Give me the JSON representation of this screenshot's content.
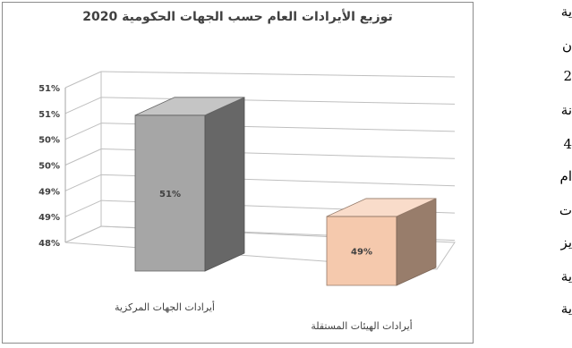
{
  "chart_data": {
    "type": "bar",
    "title": "توزيع الأيرادات العام حسب الجهات الحكومية 2020",
    "categories": [
      "أيرادات الجهات المركزية",
      "أيرادات الهيئات المستقلة"
    ],
    "values": [
      51,
      49
    ],
    "data_labels": [
      "51%",
      "49%"
    ],
    "bar_colors": [
      "#a6a6a6",
      "#f5c9ad"
    ],
    "yticks": [
      "48%",
      "49%",
      "49%",
      "50%",
      "50%",
      "51%",
      "51%"
    ],
    "ylim": [
      48,
      51.2
    ],
    "grid": true,
    "three_d": true
  },
  "side_text": {
    "lines": [
      "ية",
      "ن",
      "2",
      "نة",
      "4",
      "ام",
      "ت",
      "يز",
      "ية",
      "ية"
    ]
  }
}
